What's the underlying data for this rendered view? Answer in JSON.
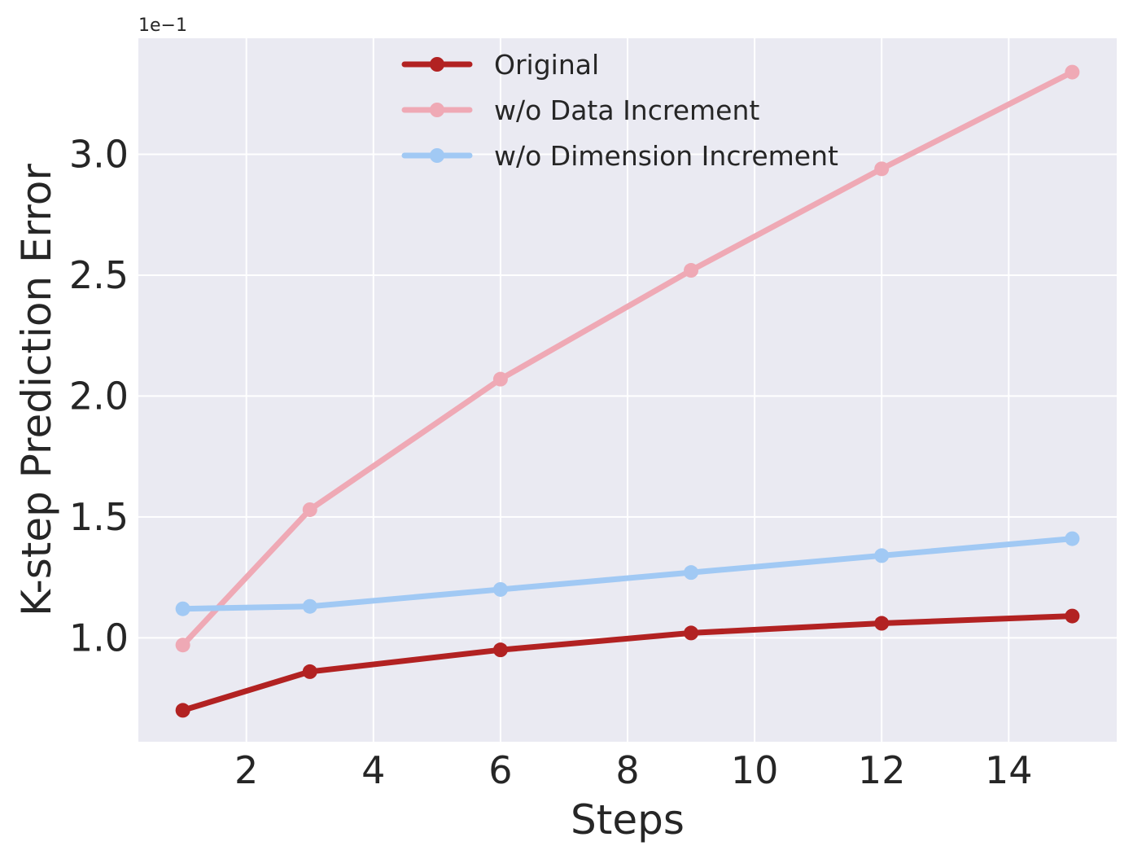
{
  "chart_data": {
    "type": "line",
    "xlabel": "Steps",
    "ylabel": "K-step Prediction Error",
    "y_offset_label": "1e−1",
    "xlim": [
      0.3,
      15.7
    ],
    "ylim": [
      0.57,
      3.48
    ],
    "x_ticks": [
      2,
      4,
      6,
      8,
      10,
      12,
      14
    ],
    "y_ticks": [
      1.0,
      1.5,
      2.0,
      2.5,
      3.0
    ],
    "y_tick_labels": [
      "1.0",
      "1.5",
      "2.0",
      "2.5",
      "3.0"
    ],
    "x": [
      1,
      3,
      6,
      9,
      12,
      15
    ],
    "grid": true,
    "legend_position": "top-center",
    "background_color": "#eaeaf2",
    "series": [
      {
        "name": "Original",
        "color": "#b22222",
        "values": [
          0.7,
          0.86,
          0.95,
          1.02,
          1.06,
          1.09
        ]
      },
      {
        "name": "w/o Data Increment",
        "color": "#efa9b5",
        "values": [
          0.97,
          1.53,
          2.07,
          2.52,
          2.94,
          3.34
        ]
      },
      {
        "name": "w/o Dimension Increment",
        "color": "#a1c9f4",
        "values": [
          1.12,
          1.13,
          1.2,
          1.27,
          1.34,
          1.41
        ]
      }
    ]
  }
}
